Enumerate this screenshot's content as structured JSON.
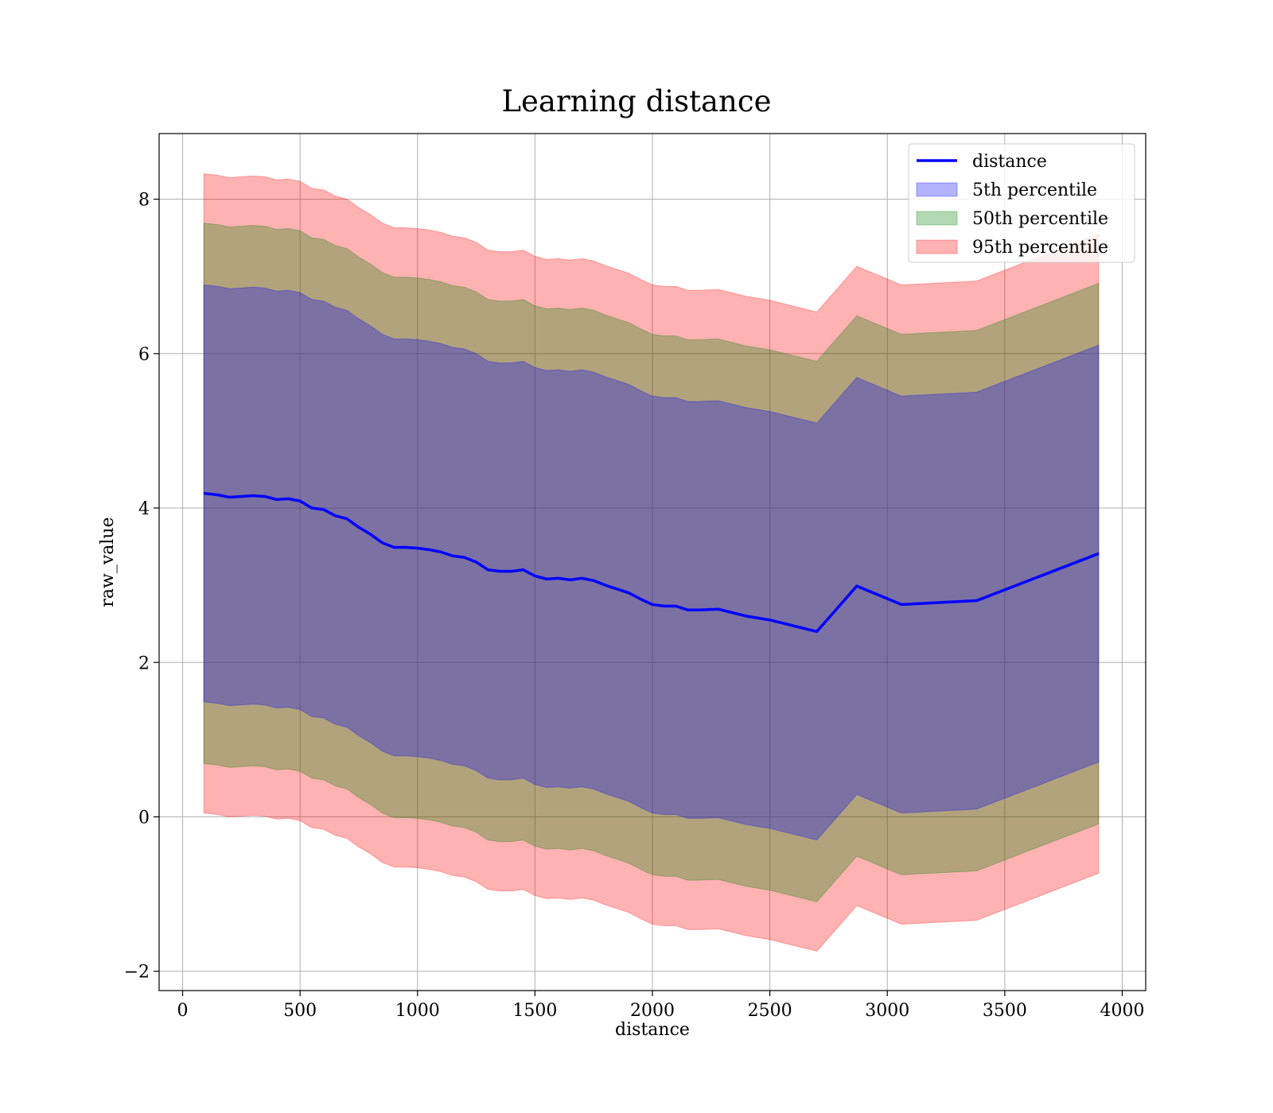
{
  "chart_data": {
    "type": "line",
    "title": "Learning distance",
    "xlabel": "distance",
    "ylabel": "raw_value",
    "xlim": [
      -100,
      4100
    ],
    "ylim": [
      -2.25,
      8.85
    ],
    "xticks": [
      0,
      500,
      1000,
      1500,
      2000,
      2500,
      3000,
      3500,
      4000
    ],
    "xtick_labels": [
      "0",
      "500",
      "1000",
      "1500",
      "2000",
      "2500",
      "3000",
      "3500",
      "4000"
    ],
    "yticks": [
      -2,
      0,
      2,
      4,
      6,
      8
    ],
    "ytick_labels": [
      "−2",
      "0",
      "2",
      "4",
      "6",
      "8"
    ],
    "grid": true,
    "legend_position": "top-right",
    "x": [
      90,
      150,
      200,
      250,
      300,
      350,
      400,
      450,
      500,
      550,
      600,
      650,
      700,
      750,
      800,
      850,
      900,
      950,
      1000,
      1050,
      1100,
      1150,
      1200,
      1250,
      1300,
      1350,
      1400,
      1450,
      1500,
      1550,
      1600,
      1650,
      1700,
      1750,
      1800,
      1850,
      1900,
      1950,
      2000,
      2050,
      2100,
      2150,
      2200,
      2280,
      2400,
      2500,
      2700,
      2870,
      3060,
      3380,
      3900
    ],
    "series": [
      {
        "name": "distance",
        "kind": "line",
        "color": "#0000ff",
        "values": [
          4.19,
          4.17,
          4.14,
          4.15,
          4.16,
          4.15,
          4.11,
          4.12,
          4.09,
          4.0,
          3.98,
          3.9,
          3.86,
          3.75,
          3.66,
          3.55,
          3.49,
          3.49,
          3.48,
          3.46,
          3.43,
          3.38,
          3.36,
          3.3,
          3.2,
          3.18,
          3.18,
          3.2,
          3.12,
          3.08,
          3.09,
          3.07,
          3.09,
          3.06,
          3.0,
          2.95,
          2.9,
          2.82,
          2.75,
          2.73,
          2.73,
          2.68,
          2.68,
          2.69,
          2.6,
          2.55,
          2.4,
          2.99,
          2.75,
          2.8,
          3.41
        ]
      },
      {
        "name": "5th percentile",
        "kind": "band",
        "color": "#0000ff",
        "lower": [
          1.49,
          1.47,
          1.44,
          1.45,
          1.46,
          1.45,
          1.41,
          1.42,
          1.39,
          1.3,
          1.28,
          1.2,
          1.16,
          1.05,
          0.96,
          0.85,
          0.79,
          0.79,
          0.78,
          0.76,
          0.73,
          0.68,
          0.66,
          0.6,
          0.5,
          0.48,
          0.48,
          0.5,
          0.42,
          0.38,
          0.39,
          0.37,
          0.39,
          0.36,
          0.3,
          0.25,
          0.2,
          0.12,
          0.05,
          0.03,
          0.03,
          -0.02,
          -0.02,
          -0.01,
          -0.1,
          -0.15,
          -0.3,
          0.29,
          0.05,
          0.1,
          0.71
        ],
        "upper": [
          6.89,
          6.87,
          6.84,
          6.85,
          6.86,
          6.85,
          6.81,
          6.82,
          6.79,
          6.7,
          6.68,
          6.6,
          6.56,
          6.45,
          6.36,
          6.25,
          6.19,
          6.19,
          6.18,
          6.16,
          6.13,
          6.08,
          6.06,
          6.0,
          5.9,
          5.88,
          5.88,
          5.9,
          5.82,
          5.78,
          5.79,
          5.77,
          5.79,
          5.76,
          5.7,
          5.65,
          5.6,
          5.52,
          5.45,
          5.43,
          5.43,
          5.38,
          5.38,
          5.39,
          5.3,
          5.25,
          5.1,
          5.69,
          5.45,
          5.5,
          6.11
        ]
      },
      {
        "name": "50th percentile",
        "kind": "band",
        "color": "#008000",
        "lower": [
          0.69,
          0.67,
          0.64,
          0.65,
          0.66,
          0.65,
          0.61,
          0.62,
          0.59,
          0.5,
          0.48,
          0.4,
          0.36,
          0.25,
          0.16,
          0.05,
          -0.01,
          -0.01,
          -0.02,
          -0.04,
          -0.07,
          -0.12,
          -0.14,
          -0.2,
          -0.3,
          -0.32,
          -0.32,
          -0.3,
          -0.38,
          -0.42,
          -0.41,
          -0.43,
          -0.41,
          -0.44,
          -0.5,
          -0.55,
          -0.6,
          -0.68,
          -0.75,
          -0.77,
          -0.77,
          -0.82,
          -0.82,
          -0.81,
          -0.9,
          -0.95,
          -1.1,
          -0.51,
          -0.75,
          -0.7,
          -0.09
        ],
        "upper": [
          7.69,
          7.67,
          7.64,
          7.65,
          7.66,
          7.65,
          7.61,
          7.62,
          7.59,
          7.5,
          7.48,
          7.4,
          7.36,
          7.25,
          7.16,
          7.05,
          6.99,
          6.99,
          6.98,
          6.96,
          6.93,
          6.88,
          6.86,
          6.8,
          6.7,
          6.68,
          6.68,
          6.7,
          6.62,
          6.58,
          6.59,
          6.57,
          6.59,
          6.56,
          6.5,
          6.45,
          6.4,
          6.32,
          6.25,
          6.23,
          6.23,
          6.18,
          6.18,
          6.19,
          6.1,
          6.05,
          5.9,
          6.49,
          6.25,
          6.3,
          6.91
        ]
      },
      {
        "name": "95th percentile",
        "kind": "band",
        "color": "#ff0000",
        "lower": [
          0.05,
          0.03,
          0.0,
          0.01,
          0.02,
          0.01,
          -0.03,
          -0.02,
          -0.05,
          -0.14,
          -0.16,
          -0.24,
          -0.28,
          -0.39,
          -0.48,
          -0.59,
          -0.65,
          -0.65,
          -0.66,
          -0.68,
          -0.71,
          -0.76,
          -0.78,
          -0.84,
          -0.94,
          -0.96,
          -0.96,
          -0.94,
          -1.02,
          -1.06,
          -1.05,
          -1.07,
          -1.05,
          -1.08,
          -1.14,
          -1.19,
          -1.24,
          -1.32,
          -1.39,
          -1.41,
          -1.41,
          -1.46,
          -1.46,
          -1.45,
          -1.54,
          -1.59,
          -1.74,
          -1.15,
          -1.39,
          -1.34,
          -0.73
        ],
        "upper": [
          8.33,
          8.31,
          8.28,
          8.29,
          8.3,
          8.29,
          8.25,
          8.26,
          8.23,
          8.14,
          8.12,
          8.04,
          8.0,
          7.89,
          7.8,
          7.69,
          7.63,
          7.63,
          7.62,
          7.6,
          7.57,
          7.52,
          7.5,
          7.44,
          7.34,
          7.32,
          7.32,
          7.34,
          7.26,
          7.22,
          7.23,
          7.21,
          7.23,
          7.2,
          7.14,
          7.09,
          7.04,
          6.96,
          6.89,
          6.87,
          6.87,
          6.82,
          6.82,
          6.83,
          6.74,
          6.69,
          6.54,
          7.13,
          6.89,
          6.94,
          7.55
        ]
      }
    ]
  }
}
